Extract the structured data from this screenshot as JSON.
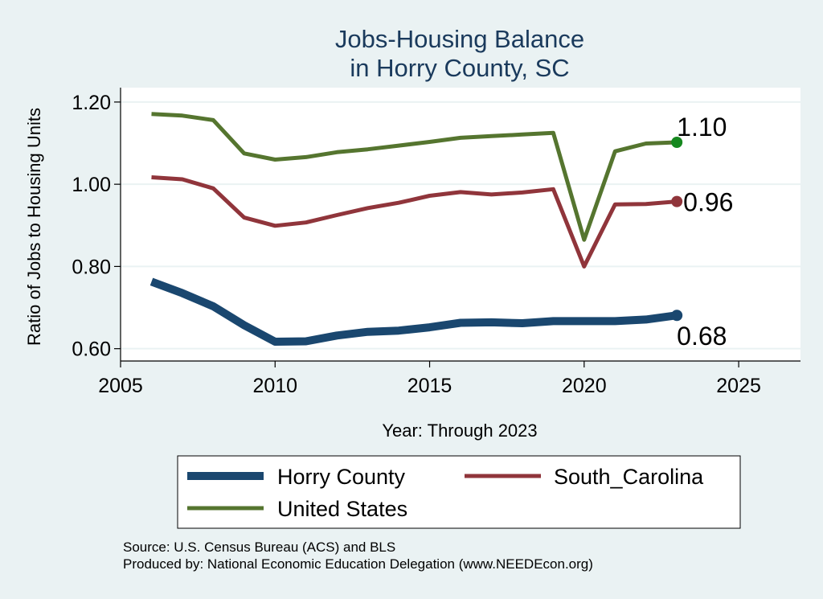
{
  "chart_data": {
    "type": "line",
    "title": [
      "Jobs-Housing Balance",
      "in Horry County, SC"
    ],
    "xlabel": "Year: Through 2023",
    "ylabel": "Ratio of Jobs to Housing Units",
    "xlim": [
      2005,
      2027
    ],
    "ylim": [
      0.57,
      1.235
    ],
    "x_ticks": [
      2005,
      2010,
      2015,
      2020,
      2025
    ],
    "y_ticks": [
      0.6,
      0.8,
      1.0,
      1.2
    ],
    "y_tick_labels": [
      "0.60",
      "0.80",
      "1.00",
      "1.20"
    ],
    "grid": true,
    "legend_position": "bottom",
    "x": [
      2006,
      2007,
      2008,
      2009,
      2010,
      2011,
      2012,
      2013,
      2014,
      2015,
      2016,
      2017,
      2018,
      2019,
      2020,
      2021,
      2022,
      2023
    ],
    "series": [
      {
        "name": "Horry County",
        "color": "#1a476f",
        "values": [
          0.763,
          0.735,
          0.703,
          0.657,
          0.617,
          0.618,
          0.632,
          0.641,
          0.644,
          0.652,
          0.663,
          0.664,
          0.662,
          0.667,
          0.667,
          0.667,
          0.671,
          0.681
        ],
        "end_label": "0.68"
      },
      {
        "name": "South_Carolina",
        "color": "#90353b",
        "values": [
          1.017,
          1.012,
          0.99,
          0.919,
          0.899,
          0.907,
          0.925,
          0.942,
          0.955,
          0.972,
          0.981,
          0.975,
          0.98,
          0.988,
          0.8,
          0.951,
          0.952,
          0.958
        ],
        "end_label": "0.96"
      },
      {
        "name": "United States",
        "color": "#55752f",
        "values": [
          1.171,
          1.167,
          1.156,
          1.075,
          1.06,
          1.066,
          1.078,
          1.085,
          1.094,
          1.103,
          1.113,
          1.117,
          1.121,
          1.125,
          0.865,
          1.08,
          1.099,
          1.102
        ],
        "end_label": "1.10"
      }
    ],
    "end_marker_colors": [
      "#1a476f",
      "#90353b",
      "#16881f"
    ]
  },
  "notes": {
    "source": "Source: U.S. Census Bureau (ACS) and BLS",
    "produced_by": "Produced by: National Economic Education Delegation (www.NEEDEcon.org)"
  }
}
